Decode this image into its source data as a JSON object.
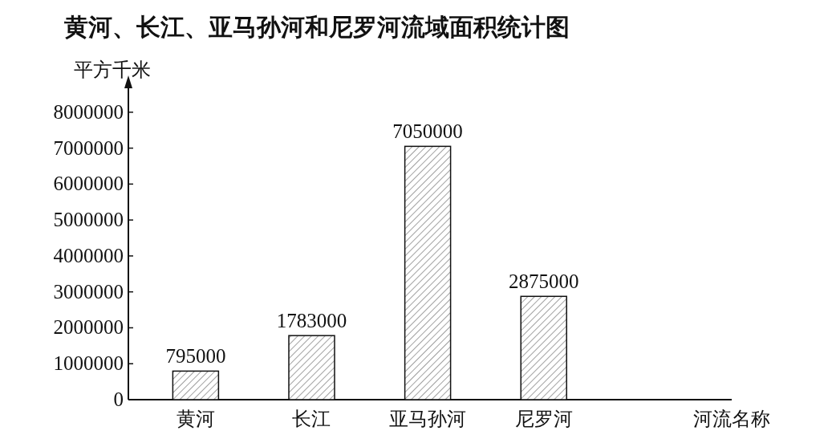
{
  "chart_data": {
    "type": "bar",
    "title": "黄河、长江、亚马孙河和尼罗河流域面积统计图",
    "ylabel": "平方千米",
    "xlabel": "河流名称",
    "categories": [
      "黄河",
      "长江",
      "亚马孙河",
      "尼罗河"
    ],
    "values": [
      795000,
      1783000,
      7050000,
      2875000
    ],
    "ylim": [
      0,
      8800000
    ],
    "yticks": [
      0,
      1000000,
      2000000,
      3000000,
      4000000,
      5000000,
      6000000,
      7000000,
      8000000
    ],
    "data_labels": true
  }
}
